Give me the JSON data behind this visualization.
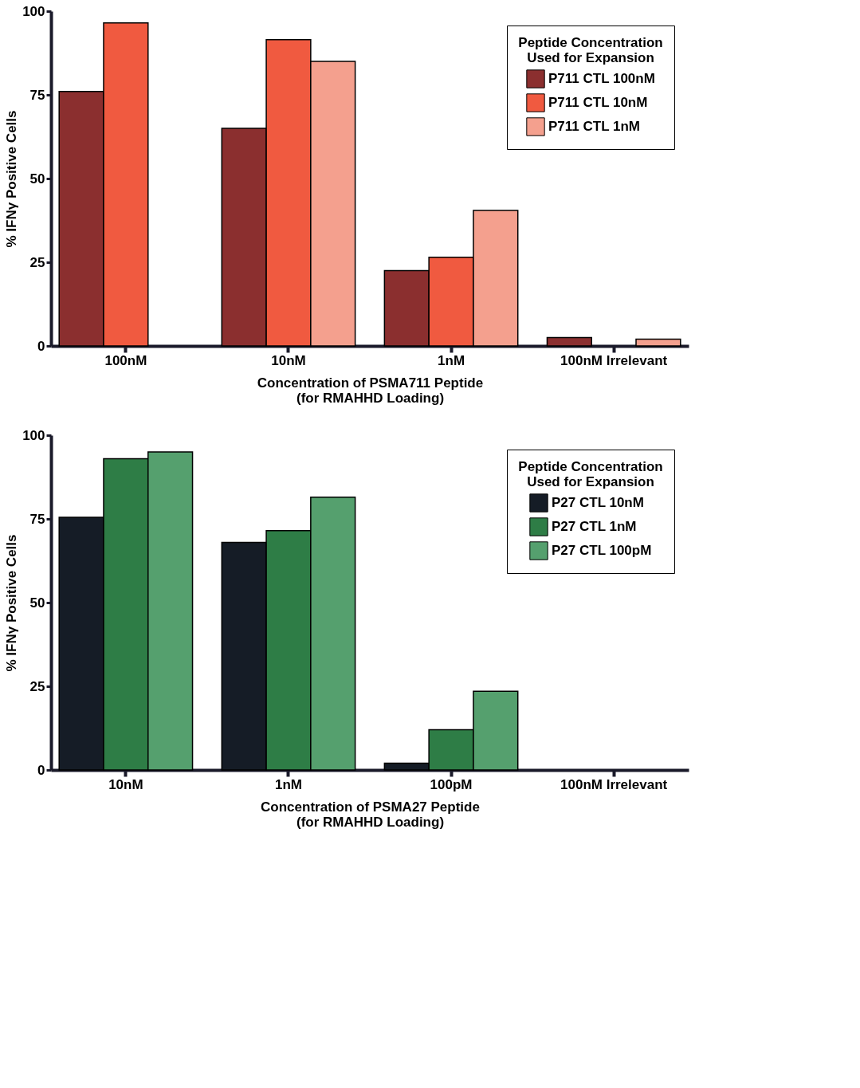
{
  "chart_data": [
    {
      "type": "bar",
      "categories": [
        "100nM",
        "10nM",
        "1nM",
        "100nM Irrelevant"
      ],
      "xlabel": "Concentration of PSMA711 Peptide\n(for RMAHHD Loading)",
      "ylabel": "% IFNγ Positive Cells",
      "legend_title": "Peptide Concentration\nUsed for Expansion",
      "legend": "top right",
      "grid": false,
      "ylim": [
        0,
        100
      ],
      "yticks": [
        0,
        25,
        50,
        75,
        100
      ],
      "series": [
        {
          "name": "P711 CTL 100nM",
          "color": "#8b2f2f",
          "values": [
            76,
            65,
            22.5,
            2.5
          ]
        },
        {
          "name": "P711 CTL 10nM",
          "color": "#f05a40",
          "values": [
            96.5,
            91.5,
            26.5,
            null
          ]
        },
        {
          "name": "P711 CTL 1nM",
          "color": "#f4a08e",
          "values": [
            null,
            85,
            40.5,
            2
          ]
        }
      ]
    },
    {
      "type": "bar",
      "categories": [
        "10nM",
        "1nM",
        "100pM",
        "100nM Irrelevant"
      ],
      "xlabel": "Concentration of PSMA27 Peptide\n(for RMAHHD Loading)",
      "ylabel": "% IFNγ Positive Cells",
      "legend_title": "Peptide Concentration\nUsed for Expansion",
      "legend": "top right",
      "grid": false,
      "ylim": [
        0,
        100
      ],
      "yticks": [
        0,
        25,
        50,
        75,
        100
      ],
      "series": [
        {
          "name": "P27 CTL 10nM",
          "color": "#151c26",
          "values": [
            75.5,
            68,
            2,
            null
          ]
        },
        {
          "name": "P27 CTL 1nM",
          "color": "#2e7d46",
          "values": [
            93,
            71.5,
            12,
            null
          ]
        },
        {
          "name": "P27 CTL 100pM",
          "color": "#55a06e",
          "values": [
            95,
            81.5,
            23.5,
            null
          ]
        }
      ]
    }
  ]
}
